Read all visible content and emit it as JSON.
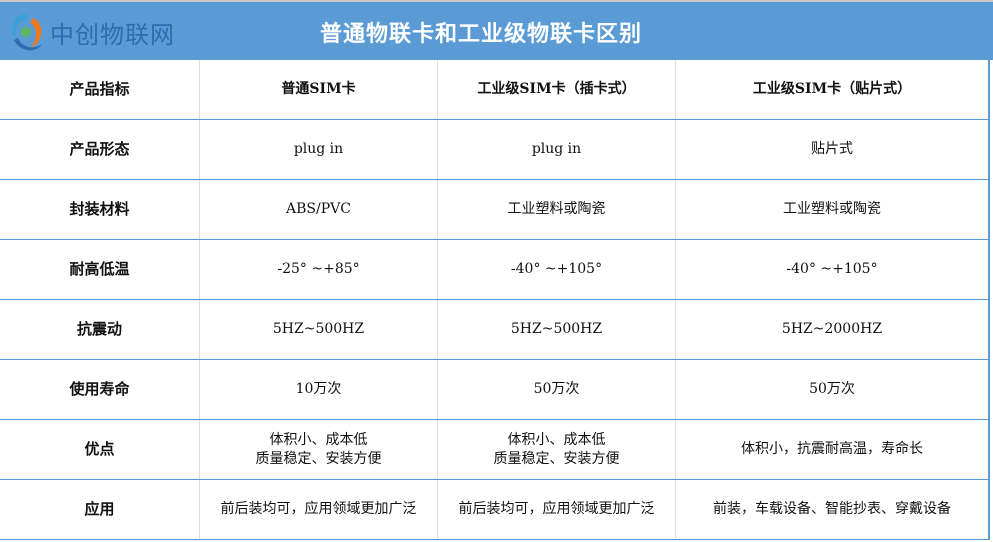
{
  "header": {
    "logo_text": "中创物联网",
    "title": "普通物联卡和工业级物联卡区别",
    "colors": {
      "header_bg": "#5b9bd5",
      "logo_text": "#2a6db0"
    }
  },
  "table": {
    "columns": [
      "产品指标",
      "普通SIM卡",
      "工业级SIM卡（插卡式）",
      "工业级SIM卡（贴片式）"
    ],
    "rows": [
      [
        "产品形态",
        "plug in",
        "plug in",
        "贴片式"
      ],
      [
        "封装材料",
        "ABS/PVC",
        "工业塑料或陶瓷",
        "工业塑料或陶瓷"
      ],
      [
        "耐高低温",
        "-25° ~+85°",
        "-40° ~+105°",
        "-40° ~+105°"
      ],
      [
        "抗震动",
        "5HZ~500HZ",
        "5HZ~500HZ",
        "5HZ~2000HZ"
      ],
      [
        "使用寿命",
        "10万次",
        "50万次",
        "50万次"
      ],
      [
        "优点",
        "体积小、成本低\n质量稳定、安装方便",
        "体积小、成本低\n质量稳定、安装方便",
        "体积小，抗震耐高温，寿命长"
      ],
      [
        "应用",
        "前后装均可，应用领域更加广泛",
        "前后装均可，应用领域更加广泛",
        "前装，车载设备、智能抄表、穿戴设备"
      ]
    ]
  }
}
